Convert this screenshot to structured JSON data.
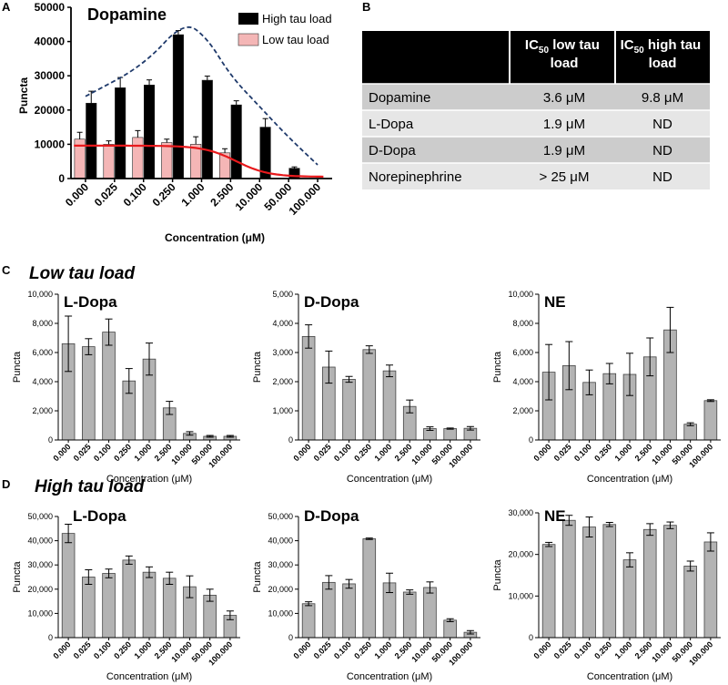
{
  "panel_letters": {
    "a": "A",
    "b": "B",
    "c": "C",
    "d": "D"
  },
  "row_titles": {
    "low": "Low tau load",
    "high": "High tau load"
  },
  "chart_data": [
    {
      "id": "A",
      "type": "bar",
      "title": "Dopamine",
      "xlabel": "Concentration (μM)",
      "ylabel": "Puncta",
      "categories": [
        "0.000",
        "0.025",
        "0.100",
        "0.250",
        "1.000",
        "2.500",
        "10.000",
        "50.000",
        "100.000"
      ],
      "ylim": [
        0,
        50000
      ],
      "yticks": [
        "0",
        "10000",
        "20000",
        "30000",
        "40000",
        "50000"
      ],
      "series": [
        {
          "name": "Low tau load",
          "color": "#f4b6b6",
          "values": [
            11500,
            10000,
            12000,
            10500,
            10000,
            7500,
            0,
            0,
            0
          ],
          "errors": [
            2000,
            1000,
            2000,
            1000,
            2200,
            1200,
            0,
            0,
            0
          ]
        },
        {
          "name": "High tau load",
          "color": "#000000",
          "values": [
            22000,
            26500,
            27300,
            42000,
            28700,
            21500,
            15000,
            3000,
            0
          ],
          "errors": [
            3500,
            3000,
            1500,
            1200,
            1200,
            1200,
            2500,
            400,
            0
          ]
        }
      ],
      "fit_low": {
        "color": "#e8191c",
        "top": 9600,
        "bottom": 500,
        "ic50_index": 5.2
      },
      "envelope": {
        "color": "#1f3a6b",
        "points": [
          [
            0,
            24000
          ],
          [
            2,
            33000
          ],
          [
            3.4,
            46000
          ],
          [
            4.2,
            41000
          ],
          [
            5,
            30000
          ],
          [
            6,
            21000
          ],
          [
            7,
            12000
          ],
          [
            8,
            4000
          ]
        ]
      }
    },
    {
      "id": "C1",
      "type": "bar",
      "title": "L-Dopa",
      "row": "low",
      "xlabel": "Concentration (μM)",
      "ylabel": "Puncta",
      "categories": [
        "0.000",
        "0.025",
        "0.100",
        "0.250",
        "1.000",
        "2.500",
        "10.000",
        "50.000",
        "100.000"
      ],
      "ylim": [
        0,
        10000
      ],
      "yticks": [
        "0",
        "2,000",
        "4,000",
        "6,000",
        "8,000",
        "10,000"
      ],
      "values": [
        6600,
        6400,
        7400,
        4050,
        5550,
        2200,
        450,
        250,
        250
      ],
      "errors": [
        1900,
        550,
        900,
        850,
        1100,
        450,
        120,
        60,
        60
      ]
    },
    {
      "id": "C2",
      "type": "bar",
      "title": "D-Dopa",
      "row": "low",
      "xlabel": "Concentration (μM)",
      "ylabel": "Puncta",
      "categories": [
        "0.000",
        "0.025",
        "0.100",
        "0.250",
        "1.000",
        "2.500",
        "10.000",
        "50.000",
        "100.000"
      ],
      "ylim": [
        0,
        5000
      ],
      "yticks": [
        "0",
        "1,000",
        "2,000",
        "3,000",
        "4,000",
        "5,000"
      ],
      "values": [
        3550,
        2500,
        2080,
        3100,
        2370,
        1150,
        390,
        390,
        400
      ],
      "errors": [
        400,
        550,
        100,
        130,
        200,
        220,
        60,
        20,
        60
      ]
    },
    {
      "id": "C3",
      "type": "bar",
      "title": "NE",
      "row": "low",
      "xlabel": "Concentration (μM)",
      "ylabel": "Puncta",
      "categories": [
        "0.000",
        "0.025",
        "0.100",
        "0.250",
        "1.000",
        "2.500",
        "10.000",
        "50.000",
        "100.000"
      ],
      "ylim": [
        0,
        10000
      ],
      "yticks": [
        "0",
        "2,000",
        "4,000",
        "6,000",
        "8,000",
        "10,000"
      ],
      "values": [
        4650,
        5100,
        3950,
        4550,
        4500,
        5700,
        7550,
        1080,
        2700
      ],
      "errors": [
        1900,
        1650,
        850,
        700,
        1450,
        1300,
        1550,
        100,
        60
      ]
    },
    {
      "id": "D1",
      "type": "bar",
      "title": "L-Dopa",
      "row": "high",
      "xlabel": "Concentration (μM)",
      "ylabel": "Puncta",
      "categories": [
        "0.000",
        "0.025",
        "0.100",
        "0.250",
        "1.000",
        "2.500",
        "10.000",
        "50.000",
        "100.000"
      ],
      "ylim": [
        0,
        50000
      ],
      "yticks": [
        "0",
        "10,000",
        "20,000",
        "30,000",
        "40,000",
        "50,000"
      ],
      "values": [
        43000,
        25000,
        26500,
        32000,
        27000,
        24500,
        21000,
        17500,
        9200
      ],
      "errors": [
        3800,
        3000,
        1800,
        1700,
        2200,
        2500,
        4500,
        2500,
        1800
      ]
    },
    {
      "id": "D2",
      "type": "bar",
      "title": "D-Dopa",
      "row": "high",
      "xlabel": "Concentration (μM)",
      "ylabel": "Puncta",
      "categories": [
        "0.000",
        "0.025",
        "0.100",
        "0.250",
        "1.000",
        "2.500",
        "10.000",
        "50.000",
        "100.000"
      ],
      "ylim": [
        0,
        50000
      ],
      "yticks": [
        "0",
        "10,000",
        "20,000",
        "30,000",
        "40,000",
        "50,000"
      ],
      "values": [
        14000,
        22800,
        22200,
        40800,
        22600,
        18800,
        20700,
        7200,
        2200
      ],
      "errors": [
        800,
        2800,
        1800,
        300,
        4000,
        900,
        2300,
        600,
        700
      ]
    },
    {
      "id": "D3",
      "type": "bar",
      "title": "NE",
      "row": "high",
      "xlabel": "Concentration (μM)",
      "ylabel": "Puncta",
      "categories": [
        "0.000",
        "0.025",
        "0.100",
        "0.250",
        "1.000",
        "2.500",
        "10.000",
        "50.000",
        "100.000"
      ],
      "ylim": [
        0,
        30000
      ],
      "yticks": [
        "0",
        "10,000",
        "20,000",
        "30,000"
      ],
      "values": [
        22400,
        28200,
        26600,
        27200,
        18700,
        26000,
        27000,
        17200,
        23000
      ],
      "errors": [
        500,
        1200,
        2400,
        500,
        1700,
        1400,
        800,
        1200,
        2200
      ]
    }
  ],
  "table": {
    "header": [
      "",
      "IC50 low tau load",
      "IC50 high tau load"
    ],
    "rows": [
      [
        "Dopamine",
        "3.6 μM",
        "9.8 μM"
      ],
      [
        "L-Dopa",
        "1.9 μM",
        "ND"
      ],
      [
        "D-Dopa",
        "1.9 μM",
        "ND"
      ],
      [
        "Norepinephrine",
        "> 25 μM",
        "ND"
      ]
    ]
  }
}
